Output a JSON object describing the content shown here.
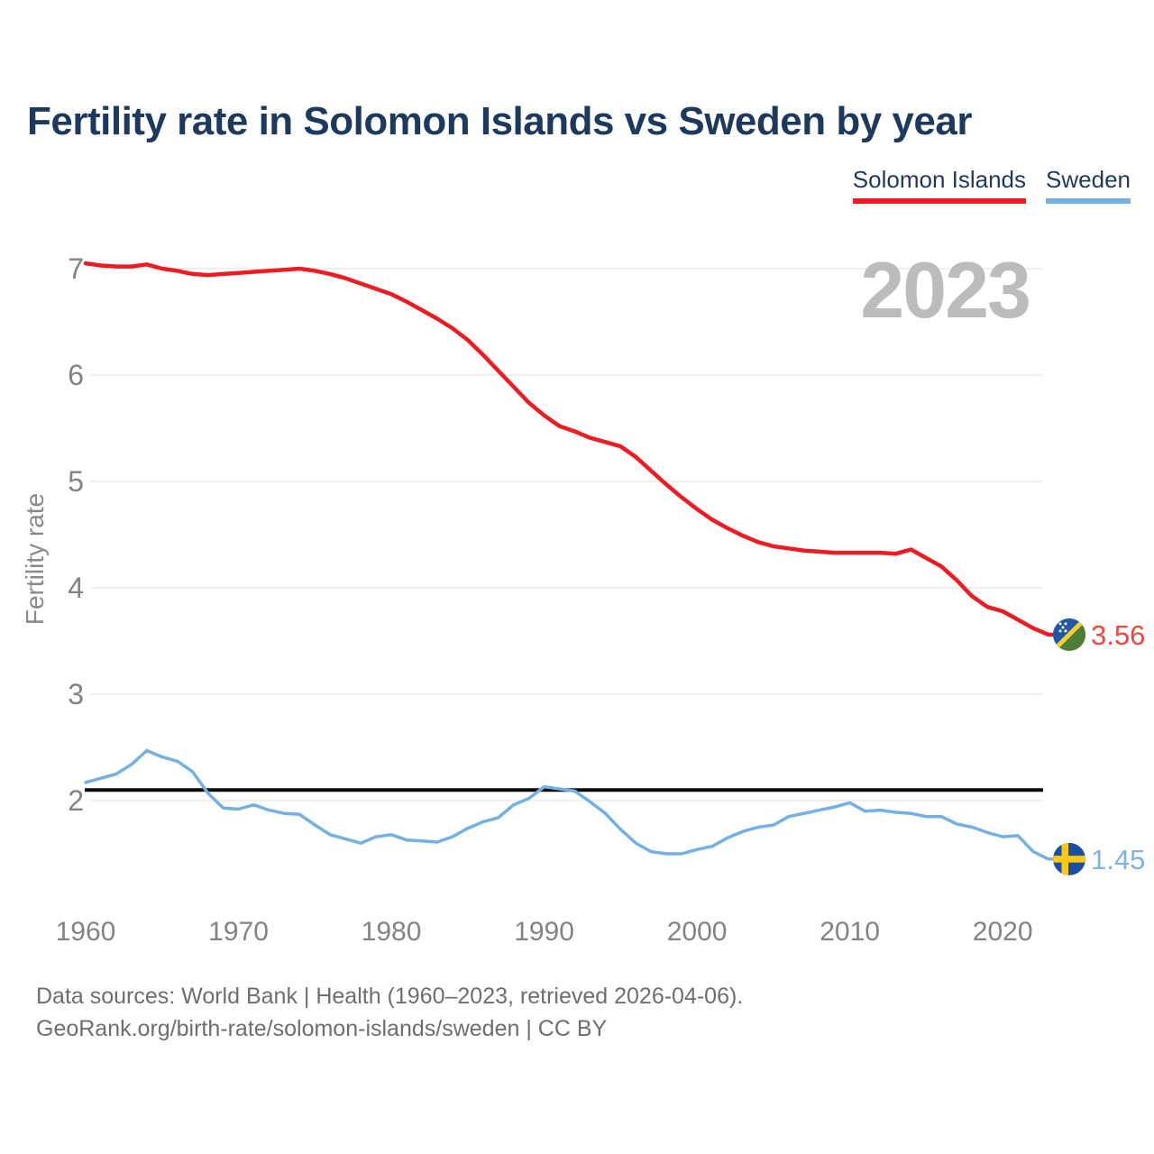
{
  "title": "Fertility rate in Solomon Islands vs Sweden by year",
  "legend": [
    {
      "label": "Solomon Islands",
      "color": "#ee1b22"
    },
    {
      "label": "Sweden",
      "color": "#74b0e2"
    }
  ],
  "watermark": "2023",
  "footer": {
    "line1": "Data sources: World Bank | Health (1960–2023, retrieved 2026-04-06).",
    "line2": "GeoRank.org/birth-rate/solomon-islands/sweden | CC BY"
  },
  "chart_data": {
    "type": "line",
    "title": "Fertility rate in Solomon Islands vs Sweden by year",
    "xlabel": "",
    "ylabel": "Fertility rate",
    "xlim": [
      1960,
      2023
    ],
    "ylim": [
      1.2,
      7.35
    ],
    "x_ticks": [
      1960,
      1970,
      1980,
      1990,
      2000,
      2010,
      2020
    ],
    "y_ticks": [
      2,
      3,
      4,
      5,
      6,
      7
    ],
    "grid": "horizontal",
    "legend_position": "top-right",
    "reference_line": {
      "value": 2.1,
      "color": "#0a0a0a"
    },
    "x": [
      1960,
      1961,
      1962,
      1963,
      1964,
      1965,
      1966,
      1967,
      1968,
      1969,
      1970,
      1971,
      1972,
      1973,
      1974,
      1975,
      1976,
      1977,
      1978,
      1979,
      1980,
      1981,
      1982,
      1983,
      1984,
      1985,
      1986,
      1987,
      1988,
      1989,
      1990,
      1991,
      1992,
      1993,
      1994,
      1995,
      1996,
      1997,
      1998,
      1999,
      2000,
      2001,
      2002,
      2003,
      2004,
      2005,
      2006,
      2007,
      2008,
      2009,
      2010,
      2011,
      2012,
      2013,
      2014,
      2015,
      2016,
      2017,
      2018,
      2019,
      2020,
      2021,
      2022,
      2023
    ],
    "series": [
      {
        "name": "Solomon Islands",
        "color": "#ee1b22",
        "end_label": "3.56",
        "end_label_color": "#f2453d",
        "flag": "solomon-islands",
        "values": [
          7.05,
          7.03,
          7.02,
          7.02,
          7.04,
          7.0,
          6.98,
          6.95,
          6.94,
          6.95,
          6.96,
          6.97,
          6.98,
          6.99,
          7.0,
          6.98,
          6.95,
          6.91,
          6.86,
          6.81,
          6.76,
          6.69,
          6.61,
          6.53,
          6.44,
          6.33,
          6.19,
          6.04,
          5.89,
          5.74,
          5.62,
          5.52,
          5.47,
          5.41,
          5.37,
          5.33,
          5.23,
          5.1,
          4.97,
          4.85,
          4.74,
          4.64,
          4.56,
          4.49,
          4.43,
          4.39,
          4.37,
          4.35,
          4.34,
          4.33,
          4.33,
          4.33,
          4.33,
          4.32,
          4.36,
          4.28,
          4.2,
          4.07,
          3.92,
          3.82,
          3.78,
          3.7,
          3.62,
          3.56
        ]
      },
      {
        "name": "Sweden",
        "color": "#74b0e2",
        "end_label": "1.45",
        "end_label_color": "#7db4e6",
        "flag": "sweden",
        "values": [
          2.17,
          2.21,
          2.25,
          2.34,
          2.47,
          2.41,
          2.37,
          2.27,
          2.07,
          1.93,
          1.92,
          1.96,
          1.91,
          1.88,
          1.87,
          1.77,
          1.68,
          1.64,
          1.6,
          1.66,
          1.68,
          1.63,
          1.62,
          1.61,
          1.66,
          1.74,
          1.8,
          1.84,
          1.96,
          2.02,
          2.13,
          2.11,
          2.09,
          1.99,
          1.88,
          1.73,
          1.6,
          1.52,
          1.5,
          1.5,
          1.54,
          1.57,
          1.65,
          1.71,
          1.75,
          1.77,
          1.85,
          1.88,
          1.91,
          1.94,
          1.98,
          1.9,
          1.91,
          1.89,
          1.88,
          1.85,
          1.85,
          1.78,
          1.75,
          1.7,
          1.66,
          1.67,
          1.52,
          1.45
        ]
      }
    ],
    "annotations": {
      "watermark": "2023"
    }
  }
}
